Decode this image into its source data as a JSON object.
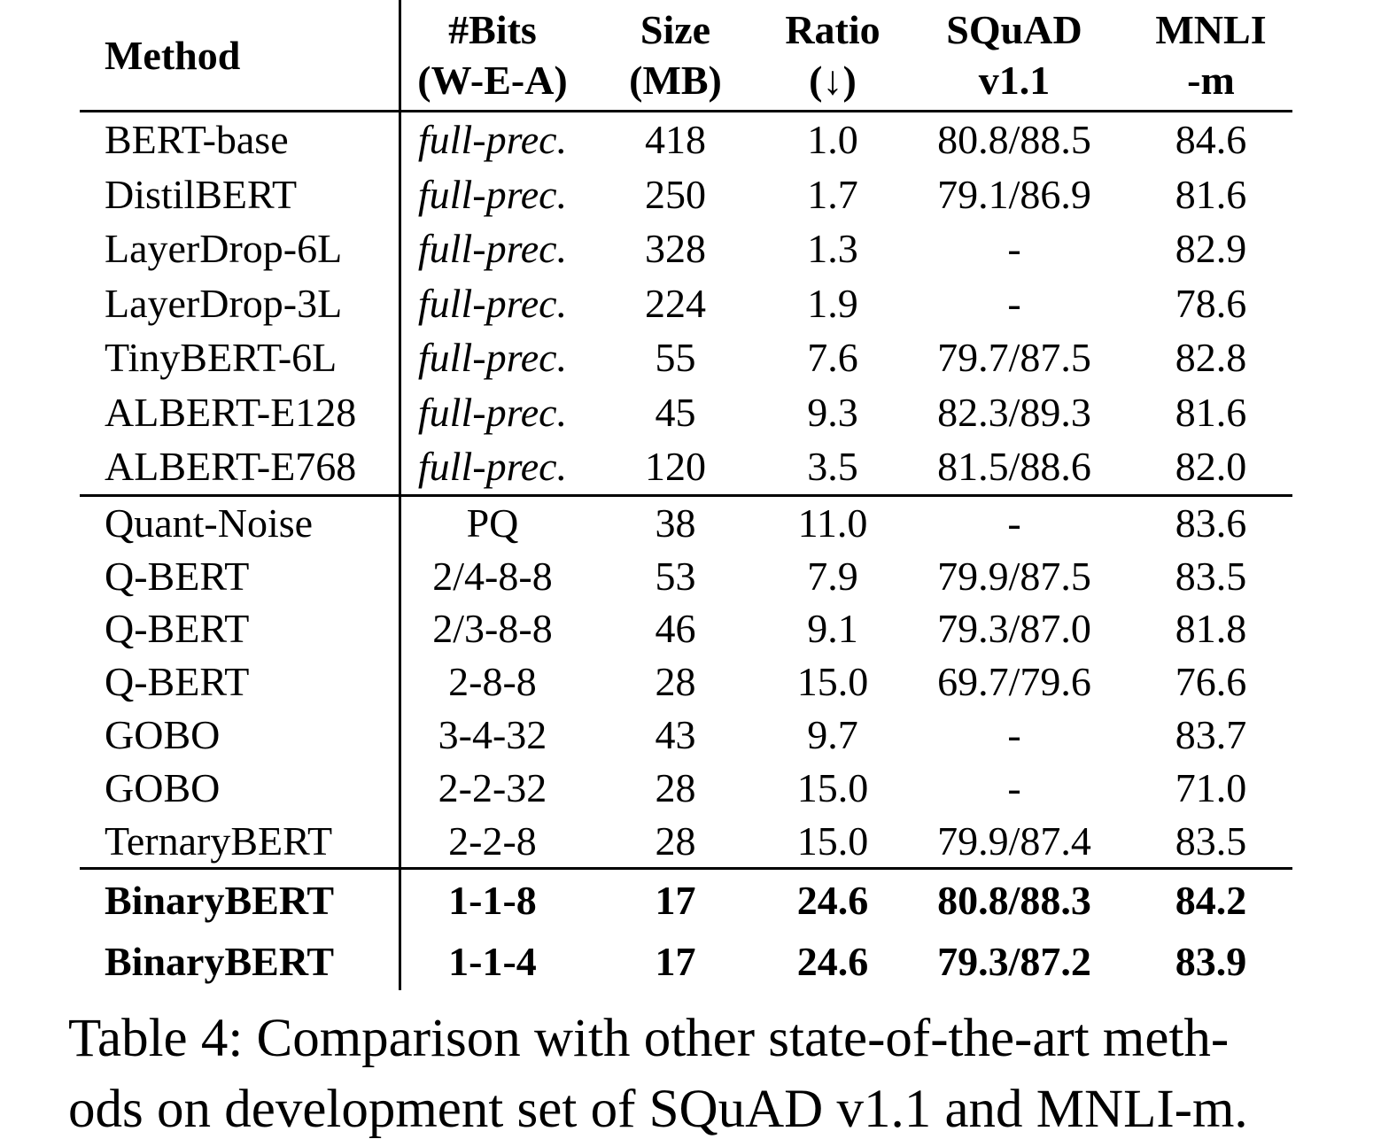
{
  "table": {
    "columns": [
      {
        "id": "method",
        "line1": "Method",
        "line2": ""
      },
      {
        "id": "bits",
        "line1": "#Bits",
        "line2": "(W-E-A)"
      },
      {
        "id": "size",
        "line1": "Size",
        "line2": "(MB)"
      },
      {
        "id": "ratio",
        "line1": "Ratio",
        "line2": "(↓)"
      },
      {
        "id": "squad",
        "line1": "SQuAD",
        "line2": "v1.1"
      },
      {
        "id": "mnli",
        "line1": "MNLI",
        "line2": "-m"
      }
    ],
    "groups": [
      {
        "rows": [
          {
            "method": "BERT-base",
            "bits": "full-prec.",
            "bits_italic": true,
            "size": "418",
            "ratio": "1.0",
            "squad": "80.8/88.5",
            "mnli": "84.6",
            "bold": false
          },
          {
            "method": "DistilBERT",
            "bits": "full-prec.",
            "bits_italic": true,
            "size": "250",
            "ratio": "1.7",
            "squad": "79.1/86.9",
            "mnli": "81.6",
            "bold": false
          },
          {
            "method": "LayerDrop-6L",
            "bits": "full-prec.",
            "bits_italic": true,
            "size": "328",
            "ratio": "1.3",
            "squad": "-",
            "mnli": "82.9",
            "bold": false
          },
          {
            "method": "LayerDrop-3L",
            "bits": "full-prec.",
            "bits_italic": true,
            "size": "224",
            "ratio": "1.9",
            "squad": "-",
            "mnli": "78.6",
            "bold": false
          },
          {
            "method": "TinyBERT-6L",
            "bits": "full-prec.",
            "bits_italic": true,
            "size": "55",
            "ratio": "7.6",
            "squad": "79.7/87.5",
            "mnli": "82.8",
            "bold": false
          },
          {
            "method": "ALBERT-E128",
            "bits": "full-prec.",
            "bits_italic": true,
            "size": "45",
            "ratio": "9.3",
            "squad": "82.3/89.3",
            "mnli": "81.6",
            "bold": false
          },
          {
            "method": "ALBERT-E768",
            "bits": "full-prec.",
            "bits_italic": true,
            "size": "120",
            "ratio": "3.5",
            "squad": "81.5/88.6",
            "mnli": "82.0",
            "bold": false
          }
        ]
      },
      {
        "rows": [
          {
            "method": "Quant-Noise",
            "bits": "PQ",
            "bits_italic": false,
            "size": "38",
            "ratio": "11.0",
            "squad": "-",
            "mnli": "83.6",
            "bold": false
          },
          {
            "method": "Q-BERT",
            "bits": "2/4-8-8",
            "bits_italic": false,
            "size": "53",
            "ratio": "7.9",
            "squad": "79.9/87.5",
            "mnli": "83.5",
            "bold": false
          },
          {
            "method": "Q-BERT",
            "bits": "2/3-8-8",
            "bits_italic": false,
            "size": "46",
            "ratio": "9.1",
            "squad": "79.3/87.0",
            "mnli": "81.8",
            "bold": false
          },
          {
            "method": "Q-BERT",
            "bits": "2-8-8",
            "bits_italic": false,
            "size": "28",
            "ratio": "15.0",
            "squad": "69.7/79.6",
            "mnli": "76.6",
            "bold": false
          },
          {
            "method": "GOBO",
            "bits": "3-4-32",
            "bits_italic": false,
            "size": "43",
            "ratio": "9.7",
            "squad": "-",
            "mnli": "83.7",
            "bold": false
          },
          {
            "method": "GOBO",
            "bits": "2-2-32",
            "bits_italic": false,
            "size": "28",
            "ratio": "15.0",
            "squad": "-",
            "mnli": "71.0",
            "bold": false
          },
          {
            "method": "TernaryBERT",
            "bits": "2-2-8",
            "bits_italic": false,
            "size": "28",
            "ratio": "15.0",
            "squad": "79.9/87.4",
            "mnli": "83.5",
            "bold": false
          }
        ]
      },
      {
        "rows": [
          {
            "method": "BinaryBERT",
            "bits": "1-1-8",
            "bits_italic": false,
            "size": "17",
            "ratio": "24.6",
            "squad": "80.8/88.3",
            "mnli": "84.2",
            "bold": true
          },
          {
            "method": "BinaryBERT",
            "bits": "1-1-4",
            "bits_italic": false,
            "size": "17",
            "ratio": "24.6",
            "squad": "79.3/87.2",
            "mnli": "83.9",
            "bold": true
          }
        ]
      }
    ]
  },
  "caption": {
    "line1": "Table 4: Comparison with other state-of-the-art meth-",
    "line2": "ods on development set of SQuAD v1.1 and MNLI-m."
  }
}
